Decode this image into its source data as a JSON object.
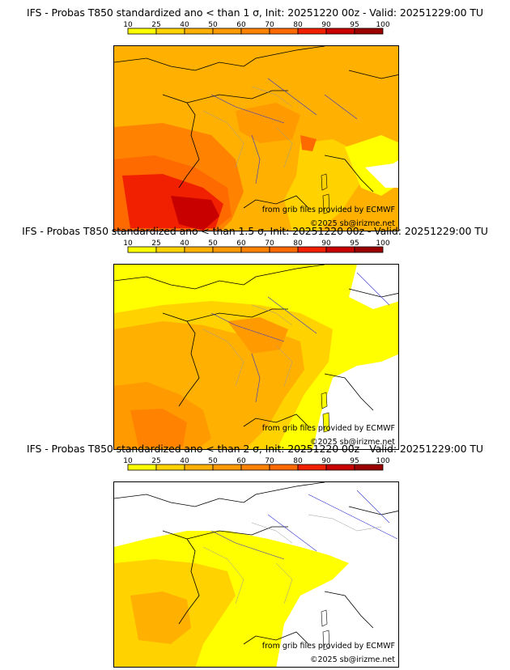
{
  "scale": {
    "ticks": [
      "10",
      "25",
      "40",
      "50",
      "60",
      "70",
      "80",
      "90",
      "95",
      "100"
    ],
    "colors": [
      "#ffff00",
      "#ffd200",
      "#ffb000",
      "#ff9a00",
      "#ff8200",
      "#ff6a00",
      "#f02000",
      "#c80000",
      "#9a0000",
      "#640000"
    ]
  },
  "panels": [
    {
      "title": "IFS - Probas T850  standardized ano < than 1 σ, Init: 20251220 00z - Valid: 20251229:00 TU",
      "credit_source": "from grib files provided by ECMWF",
      "credit_copyright": "©2025 sb@irizme.net",
      "probability_level": "high",
      "base_color": "#ffb000"
    },
    {
      "title": "IFS - Probas T850  standardized ano < than 1.5 σ, Init: 20251220 00z - Valid: 20251229:00 TU",
      "credit_source": "from grib files provided by ECMWF",
      "credit_copyright": "©2025 sb@irizme.net",
      "probability_level": "medium",
      "base_color": "#ffd200"
    },
    {
      "title": "IFS - Probas T850  standardized ano < than 2 σ, Init: 20251220 00z - Valid: 20251229:00 TU",
      "credit_source": "from grib files provided by ECMWF",
      "credit_copyright": "©2025 sb@irizme.net",
      "probability_level": "low",
      "base_color": "#ffffff"
    }
  ]
}
